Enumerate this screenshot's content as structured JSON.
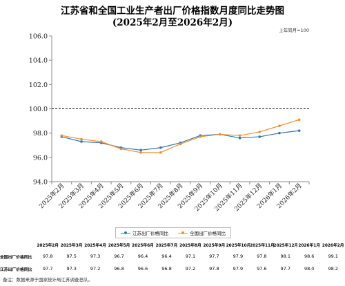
{
  "title_line1": "江苏省和全国工业生产者出厂价格指数月度同比走势图",
  "title_line2": "(2025年2月至2026年2月)",
  "unit_note": "上年同月=100",
  "chart_data": {
    "type": "line",
    "categories": [
      "2025年2月",
      "2025年3月",
      "2025年4月",
      "2025年5月",
      "2025年6月",
      "2025年7月",
      "2025年8月",
      "2025年9月",
      "2025年10月",
      "2025年11月",
      "2025年12月",
      "2026年1月",
      "2026年2月"
    ],
    "series": [
      {
        "name": "江苏出厂价格同比",
        "color": "#2e75b6",
        "values": [
          97.7,
          97.3,
          97.2,
          96.8,
          96.6,
          96.8,
          97.2,
          97.8,
          97.9,
          97.6,
          97.7,
          98.0,
          98.2
        ]
      },
      {
        "name": "全国出厂价格同比",
        "color": "#f28e2b",
        "values": [
          97.8,
          97.5,
          97.3,
          96.7,
          96.4,
          96.4,
          97.1,
          97.7,
          97.9,
          97.8,
          98.1,
          98.6,
          99.1
        ]
      }
    ],
    "ylim": [
      94.0,
      106.0
    ],
    "yticks": [
      "94.0",
      "96.0",
      "98.0",
      "100.0",
      "102.0",
      "104.0",
      "106.0"
    ],
    "reference_line": 100.0,
    "legend_position": "bottom-center",
    "grid": false
  },
  "table": {
    "headers": [
      "2025年2月",
      "2025年3月",
      "2025年4月",
      "2025年5月",
      "2025年6月",
      "2025年7月",
      "2025年8月",
      "2025年9月",
      "2025年10月",
      "2025年11月",
      "2025年12月",
      "2026年1月",
      "2026年2月"
    ],
    "rows": [
      {
        "label": "全国出厂价格同比",
        "values": [
          "97.8",
          "97.5",
          "97.3",
          "96.7",
          "96.4",
          "96.4",
          "97.1",
          "97.7",
          "97.9",
          "97.8",
          "98.1",
          "98.6",
          "99.1"
        ]
      },
      {
        "label": "江苏出厂价格同比",
        "values": [
          "97.7",
          "97.3",
          "97.2",
          "96.8",
          "96.6",
          "96.8",
          "97.2",
          "97.8",
          "97.9",
          "97.6",
          "97.7",
          "98.0",
          "98.2"
        ]
      }
    ]
  },
  "note": "备注：数据来源于国家统计局江苏调查总队。"
}
